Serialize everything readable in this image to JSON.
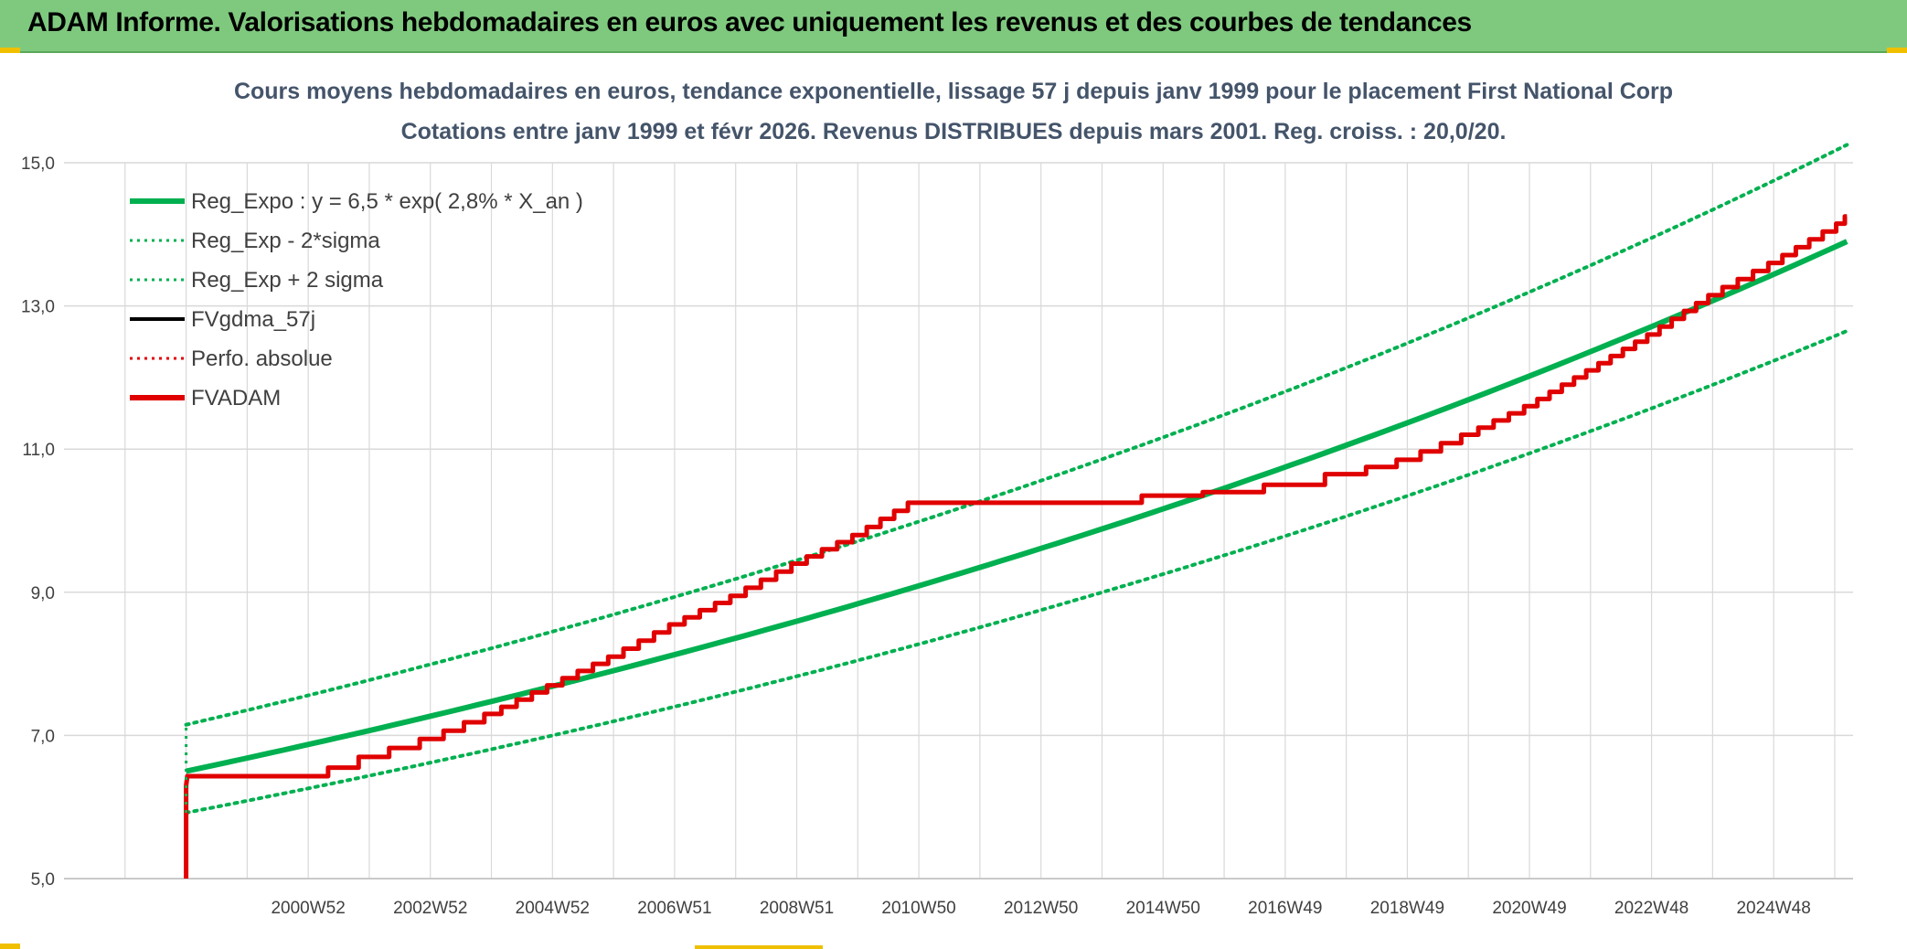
{
  "header": {
    "title": "ADAM Informe. Valorisations hebdomadaires en euros avec uniquement les revenus et des courbes de tendances"
  },
  "colors": {
    "header_bg": "#7fc97f",
    "reg_expo": "#00b050",
    "fvgdma": "#000000",
    "perfo": "#e00000",
    "fvadam": "#e00000",
    "grid": "#d9d9d9",
    "title_text": "#44546a",
    "corner_accent": "#f0c000"
  },
  "chart_data": {
    "type": "line",
    "title": "Cours moyens hebdomadaires en euros, tendance exponentielle, lissage 57 j depuis janv 1999 pour le placement First National Corp",
    "subtitle": "Cotations entre janv 1999 et févr 2026. Revenus DISTRIBUES depuis mars 2001. Reg. croiss. : 20,0/20.",
    "xlabel": "",
    "ylabel": "",
    "ylim": [
      5.0,
      15.0
    ],
    "yticks": [
      "5,0",
      "7,0",
      "9,0",
      "11,0",
      "13,0",
      "15,0"
    ],
    "xticks": [
      "2000W52",
      "2002W52",
      "2004W52",
      "2006W51",
      "2008W51",
      "2010W50",
      "2012W50",
      "2014W50",
      "2016W49",
      "2018W49",
      "2020W49",
      "2022W48",
      "2024W48"
    ],
    "xlim": [
      1997.0,
      2026.3
    ],
    "grid": true,
    "legend_position": "top-left",
    "series": [
      {
        "name": "Reg_Expo : y = 6,5 * exp( 2,8% *  X_an )",
        "style": "solid-thick",
        "color": "#00b050",
        "x": [
          1999.0,
          2026.2
        ],
        "y": [
          6.5,
          13.9
        ]
      },
      {
        "name": "Reg_Exp - 2*sigma",
        "style": "dotted",
        "color": "#00b050",
        "x": [
          1999.0,
          2026.2
        ],
        "y": [
          5.92,
          12.65
        ]
      },
      {
        "name": "Reg_Exp + 2 sigma",
        "style": "dotted",
        "color": "#00b050",
        "x": [
          1999.0,
          2026.2
        ],
        "y": [
          7.15,
          15.25
        ]
      },
      {
        "name": "FVgdma_57j",
        "style": "solid",
        "color": "#000000",
        "x": [],
        "y": []
      },
      {
        "name": "Perfo. absolue",
        "style": "dotted",
        "color": "#e00000",
        "x": [],
        "y": []
      },
      {
        "name": "FVADAM",
        "style": "solid-thick",
        "color": "#e00000",
        "x": [
          1999.0,
          1999.0,
          1999.02,
          2001.0,
          2001.5,
          2002.0,
          2003.0,
          2004.0,
          2005.0,
          2006.0,
          2007.0,
          2008.0,
          2009.0,
          2010.0,
          2010.9,
          2011.0,
          2012.0,
          2013.0,
          2014.0,
          2015.0,
          2016.0,
          2017.0,
          2018.0,
          2019.0,
          2020.0,
          2021.0,
          2022.0,
          2023.0,
          2024.0,
          2025.0,
          2026.1,
          2026.2
        ],
        "y": [
          5.0,
          6.3,
          6.43,
          6.43,
          6.55,
          6.7,
          6.95,
          7.3,
          7.7,
          8.1,
          8.55,
          8.95,
          9.4,
          9.8,
          10.25,
          10.25,
          10.25,
          10.25,
          10.25,
          10.35,
          10.4,
          10.5,
          10.65,
          10.85,
          11.2,
          11.6,
          12.1,
          12.6,
          13.15,
          13.6,
          14.15,
          14.25
        ]
      }
    ]
  }
}
